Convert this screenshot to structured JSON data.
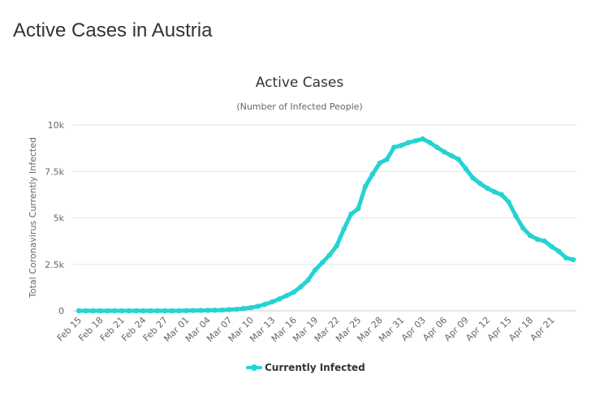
{
  "page": {
    "title": "Active Cases in Austria"
  },
  "colors": {
    "series": "#24d3d3",
    "grid": "#e6e6e6",
    "text": "#333333",
    "muted": "#666666"
  },
  "chart_data": {
    "type": "line",
    "title": "Active Cases",
    "subtitle": "(Number of Infected People)",
    "xlabel": "",
    "ylabel": "Total Coronavirus Currently Infected",
    "ylim": [
      0,
      10000
    ],
    "yticks": [
      0,
      2500,
      5000,
      7500,
      10000
    ],
    "ytick_labels": [
      "0",
      "2.5k",
      "5k",
      "7.5k",
      "10k"
    ],
    "x": [
      "Feb 15",
      "Feb 16",
      "Feb 17",
      "Feb 18",
      "Feb 19",
      "Feb 20",
      "Feb 21",
      "Feb 22",
      "Feb 23",
      "Feb 24",
      "Feb 25",
      "Feb 26",
      "Feb 27",
      "Feb 28",
      "Feb 29",
      "Mar 01",
      "Mar 02",
      "Mar 03",
      "Mar 04",
      "Mar 05",
      "Mar 06",
      "Mar 07",
      "Mar 08",
      "Mar 09",
      "Mar 10",
      "Mar 11",
      "Mar 12",
      "Mar 13",
      "Mar 14",
      "Mar 15",
      "Mar 16",
      "Mar 17",
      "Mar 18",
      "Mar 19",
      "Mar 20",
      "Mar 21",
      "Mar 22",
      "Mar 23",
      "Mar 24",
      "Mar 25",
      "Mar 26",
      "Mar 27",
      "Mar 28",
      "Mar 29",
      "Mar 30",
      "Mar 31",
      "Apr 01",
      "Apr 02",
      "Apr 03",
      "Apr 04",
      "Apr 05",
      "Apr 06",
      "Apr 07",
      "Apr 08",
      "Apr 09",
      "Apr 10",
      "Apr 11",
      "Apr 12",
      "Apr 13",
      "Apr 14",
      "Apr 15",
      "Apr 16",
      "Apr 17",
      "Apr 18",
      "Apr 19",
      "Apr 20",
      "Apr 21",
      "Apr 22",
      "Apr 23",
      "Apr 24"
    ],
    "xtick_labels": [
      "Feb 15",
      "Feb 18",
      "Feb 21",
      "Feb 24",
      "Feb 27",
      "Mar 01",
      "Mar 04",
      "Mar 07",
      "Mar 10",
      "Mar 13",
      "Mar 16",
      "Mar 19",
      "Mar 22",
      "Mar 25",
      "Mar 28",
      "Mar 31",
      "Apr 03",
      "Apr 06",
      "Apr 09",
      "Apr 12",
      "Apr 15",
      "Apr 18",
      "Apr 21"
    ],
    "series": [
      {
        "name": "Currently Infected",
        "values": [
          0,
          0,
          0,
          0,
          0,
          0,
          0,
          0,
          0,
          0,
          0,
          0,
          0,
          0,
          0,
          10,
          15,
          20,
          25,
          30,
          40,
          60,
          80,
          120,
          170,
          240,
          350,
          480,
          640,
          820,
          1000,
          1300,
          1650,
          2200,
          2600,
          3000,
          3500,
          4400,
          5200,
          5500,
          6700,
          7350,
          7950,
          8150,
          8800,
          8900,
          9050,
          9150,
          9250,
          9050,
          8800,
          8550,
          8350,
          8150,
          7650,
          7150,
          6850,
          6600,
          6400,
          6250,
          5850,
          5100,
          4450,
          4050,
          3850,
          3750,
          3450,
          3200,
          2850,
          2750
        ]
      }
    ],
    "legend": "bottom-center",
    "grid": true
  }
}
